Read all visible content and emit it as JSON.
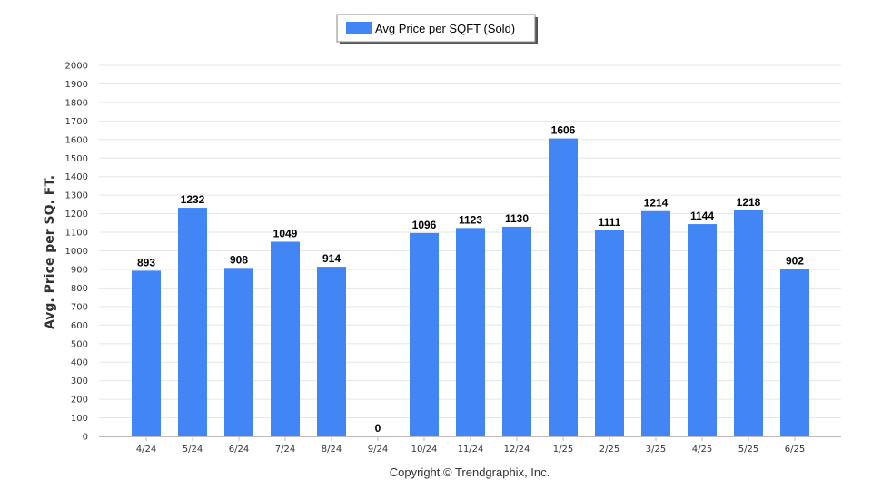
{
  "chart_data": {
    "type": "bar",
    "categories": [
      "4/24",
      "5/24",
      "6/24",
      "7/24",
      "8/24",
      "9/24",
      "10/24",
      "11/24",
      "12/24",
      "1/25",
      "2/25",
      "3/25",
      "4/25",
      "5/25",
      "6/25"
    ],
    "series": [
      {
        "name": "Avg Price per SQFT (Sold)",
        "values": [
          893,
          1232,
          908,
          1049,
          914,
          0,
          1096,
          1123,
          1130,
          1606,
          1111,
          1214,
          1144,
          1218,
          902
        ]
      }
    ],
    "title": "",
    "xlabel": "",
    "ylabel": "Avg. Price per SQ. FT.",
    "ylim": [
      0,
      2000
    ],
    "yticks": [
      0,
      100,
      200,
      300,
      400,
      500,
      600,
      700,
      800,
      900,
      1000,
      1100,
      1200,
      1300,
      1400,
      1500,
      1600,
      1700,
      1800,
      1900,
      2000
    ],
    "grid": true,
    "legend_position": "top-center",
    "bar_color": "#4285f4"
  },
  "footer": {
    "copyright": "Copyright © Trendgraphix, Inc."
  }
}
